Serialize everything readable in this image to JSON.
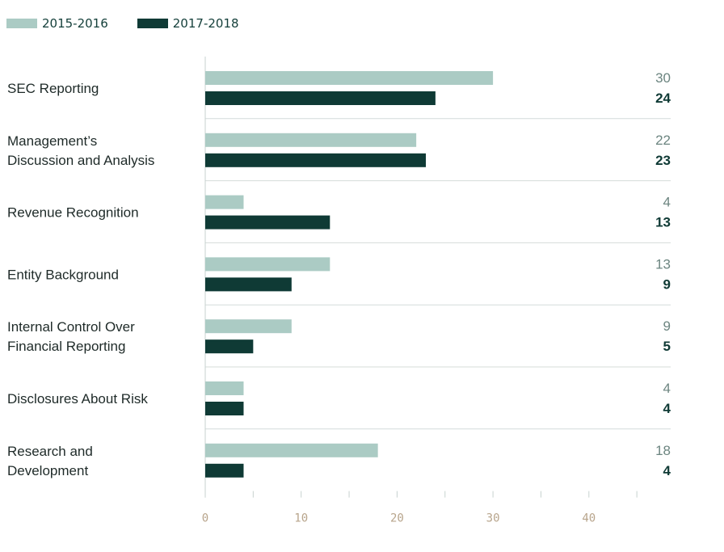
{
  "chart_data": {
    "type": "bar",
    "orientation": "horizontal",
    "categories": [
      [
        "SEC Reporting"
      ],
      [
        "Management’s",
        "Discussion and Analysis"
      ],
      [
        "Revenue Recognition"
      ],
      [
        "Entity Background"
      ],
      [
        "Internal Control Over",
        "Financial Reporting"
      ],
      [
        "Disclosures About Risk"
      ],
      [
        "Research and",
        "Development"
      ]
    ],
    "series": [
      {
        "name": "2015-2016",
        "values": [
          30,
          22,
          4,
          13,
          9,
          4,
          18
        ],
        "color": "#abcbc4"
      },
      {
        "name": "2017-2018",
        "values": [
          24,
          23,
          13,
          9,
          5,
          4,
          4
        ],
        "color": "#0f3a35"
      }
    ],
    "xlim": [
      0,
      48
    ],
    "xticks": [
      0,
      10,
      20,
      30,
      40
    ],
    "legend_position": "top-left",
    "grid": "horizontal separators between categories"
  }
}
